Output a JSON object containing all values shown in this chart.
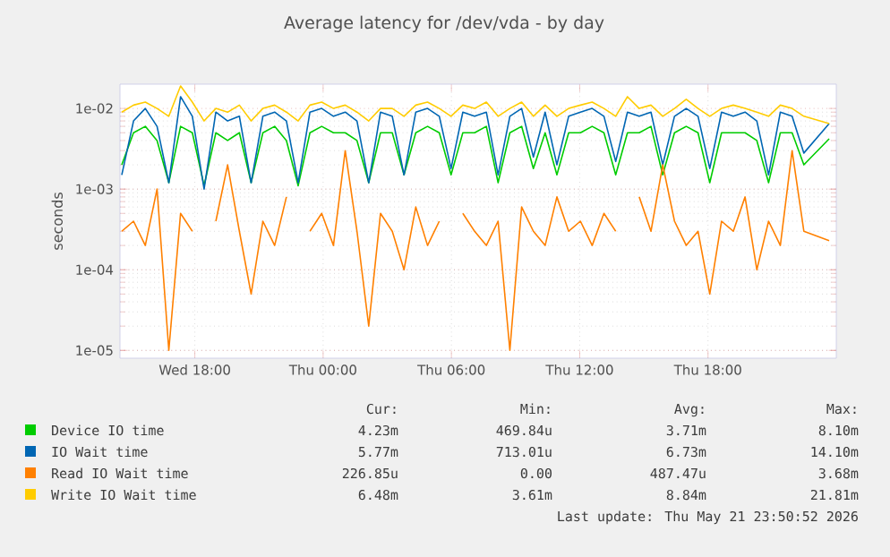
{
  "chart_data": {
    "type": "line",
    "title": "Average latency for /dev/vda - by day",
    "ylabel": "seconds",
    "log": "y",
    "grid": true,
    "legend": "bottom",
    "marker": "none",
    "line_style": "solid",
    "xlim": [
      "2026-05-20T14:30",
      "2026-05-22T00:00"
    ],
    "xticks": [
      {
        "value": "2026-05-20T18:00",
        "label": "Wed 18:00"
      },
      {
        "value": "2026-05-21T00:00",
        "label": "Thu 00:00"
      },
      {
        "value": "2026-05-21T06:00",
        "label": "Thu 06:00"
      },
      {
        "value": "2026-05-21T12:00",
        "label": "Thu 12:00"
      },
      {
        "value": "2026-05-21T18:00",
        "label": "Thu 18:00"
      }
    ],
    "ylim": [
      8e-06,
      0.02
    ],
    "yticks": [
      {
        "value": 1e-05,
        "label": "1e-05"
      },
      {
        "value": 0.0001,
        "label": "1e-04"
      },
      {
        "value": 0.001,
        "label": "1e-03"
      },
      {
        "value": 0.01,
        "label": "1e-02"
      }
    ],
    "x": [
      "2026-05-20T14:35",
      "2026-05-20T15:08",
      "2026-05-20T15:41",
      "2026-05-20T16:14",
      "2026-05-20T16:47",
      "2026-05-20T17:20",
      "2026-05-20T17:53",
      "2026-05-20T18:26",
      "2026-05-20T18:59",
      "2026-05-20T19:32",
      "2026-05-20T20:05",
      "2026-05-20T20:38",
      "2026-05-20T21:11",
      "2026-05-20T21:44",
      "2026-05-20T22:17",
      "2026-05-20T22:50",
      "2026-05-20T23:23",
      "2026-05-20T23:56",
      "2026-05-21T00:29",
      "2026-05-21T01:02",
      "2026-05-21T01:35",
      "2026-05-21T02:08",
      "2026-05-21T02:41",
      "2026-05-21T03:14",
      "2026-05-21T03:47",
      "2026-05-21T04:20",
      "2026-05-21T04:53",
      "2026-05-21T05:26",
      "2026-05-21T05:59",
      "2026-05-21T06:32",
      "2026-05-21T07:05",
      "2026-05-21T07:38",
      "2026-05-21T08:11",
      "2026-05-21T08:44",
      "2026-05-21T09:17",
      "2026-05-21T09:50",
      "2026-05-21T10:23",
      "2026-05-21T10:56",
      "2026-05-21T11:29",
      "2026-05-21T12:02",
      "2026-05-21T12:35",
      "2026-05-21T13:08",
      "2026-05-21T13:41",
      "2026-05-21T14:14",
      "2026-05-21T14:47",
      "2026-05-21T15:20",
      "2026-05-21T15:53",
      "2026-05-21T16:26",
      "2026-05-21T16:59",
      "2026-05-21T17:32",
      "2026-05-21T18:05",
      "2026-05-21T18:38",
      "2026-05-21T19:11",
      "2026-05-21T19:44",
      "2026-05-21T20:17",
      "2026-05-21T20:50",
      "2026-05-21T21:23",
      "2026-05-21T21:56",
      "2026-05-21T22:29",
      "2026-05-21T23:40"
    ],
    "series": [
      {
        "name": "Device IO time",
        "color": "#00cc00",
        "values": [
          0.002,
          0.005,
          0.006,
          0.004,
          0.0012,
          0.006,
          0.005,
          0.0011,
          0.005,
          0.004,
          0.005,
          0.0012,
          0.005,
          0.006,
          0.004,
          0.0011,
          0.005,
          0.006,
          0.005,
          0.005,
          0.004,
          0.0012,
          0.005,
          0.005,
          0.0015,
          0.005,
          0.006,
          0.005,
          0.0015,
          0.005,
          0.005,
          0.006,
          0.0012,
          0.005,
          0.006,
          0.0018,
          0.005,
          0.0015,
          0.005,
          0.005,
          0.006,
          0.005,
          0.0015,
          0.005,
          0.005,
          0.006,
          0.0015,
          0.005,
          0.006,
          0.005,
          0.0012,
          0.005,
          0.005,
          0.005,
          0.004,
          0.0012,
          0.005,
          0.005,
          0.002,
          0.0042
        ]
      },
      {
        "name": "IO Wait time",
        "color": "#0066b3",
        "values": [
          0.0015,
          0.007,
          0.01,
          0.006,
          0.0012,
          0.014,
          0.008,
          0.001,
          0.009,
          0.007,
          0.008,
          0.0012,
          0.008,
          0.009,
          0.007,
          0.0012,
          0.009,
          0.01,
          0.008,
          0.009,
          0.007,
          0.0012,
          0.009,
          0.008,
          0.0015,
          0.009,
          0.01,
          0.008,
          0.0018,
          0.009,
          0.008,
          0.009,
          0.0015,
          0.008,
          0.01,
          0.0025,
          0.009,
          0.002,
          0.008,
          0.009,
          0.01,
          0.008,
          0.0022,
          0.009,
          0.008,
          0.009,
          0.002,
          0.008,
          0.01,
          0.008,
          0.0018,
          0.009,
          0.008,
          0.009,
          0.007,
          0.0015,
          0.009,
          0.008,
          0.0028,
          0.0065
        ]
      },
      {
        "name": "Read IO Wait time",
        "color": "#ff8000",
        "values": [
          0.0003,
          0.0004,
          0.0002,
          0.001,
          1e-05,
          0.0005,
          0.0003,
          null,
          0.0004,
          0.002,
          0.0003,
          5e-05,
          0.0004,
          0.0002,
          0.0008,
          null,
          0.0003,
          0.0005,
          0.0002,
          0.003,
          0.0003,
          2e-05,
          0.0005,
          0.0003,
          0.0001,
          0.0006,
          0.0002,
          0.0004,
          null,
          0.0005,
          0.0003,
          0.0002,
          0.0004,
          1e-05,
          0.0006,
          0.0003,
          0.0002,
          0.0008,
          0.0003,
          0.0004,
          0.0002,
          0.0005,
          0.0003,
          null,
          0.0008,
          0.0003,
          0.002,
          0.0004,
          0.0002,
          0.0003,
          5e-05,
          0.0004,
          0.0003,
          0.0008,
          0.0001,
          0.0004,
          0.0002,
          0.003,
          0.0003,
          0.00023
        ]
      },
      {
        "name": "Write IO Wait time",
        "color": "#ffcc00",
        "values": [
          0.009,
          0.011,
          0.012,
          0.01,
          0.008,
          0.019,
          0.012,
          0.007,
          0.01,
          0.009,
          0.011,
          0.007,
          0.01,
          0.011,
          0.009,
          0.007,
          0.011,
          0.012,
          0.01,
          0.011,
          0.009,
          0.007,
          0.01,
          0.01,
          0.008,
          0.011,
          0.012,
          0.01,
          0.008,
          0.011,
          0.01,
          0.012,
          0.008,
          0.01,
          0.012,
          0.008,
          0.011,
          0.008,
          0.01,
          0.011,
          0.012,
          0.01,
          0.008,
          0.014,
          0.01,
          0.011,
          0.008,
          0.01,
          0.013,
          0.01,
          0.008,
          0.01,
          0.011,
          0.01,
          0.009,
          0.008,
          0.011,
          0.01,
          0.008,
          0.0065
        ]
      }
    ],
    "annotations": [
      "Cur:",
      "Min:",
      "Avg:",
      "Max:",
      "4.23m",
      "469.84u",
      "3.71m",
      "8.10m",
      "5.77m",
      "713.01u",
      "6.73m",
      "14.10m",
      "226.85u",
      "0.00",
      "487.47u",
      "3.68m",
      "6.48m",
      "3.61m",
      "8.84m",
      "21.81m",
      "Last update: Thu May 21 23:50:52 2026"
    ]
  }
}
